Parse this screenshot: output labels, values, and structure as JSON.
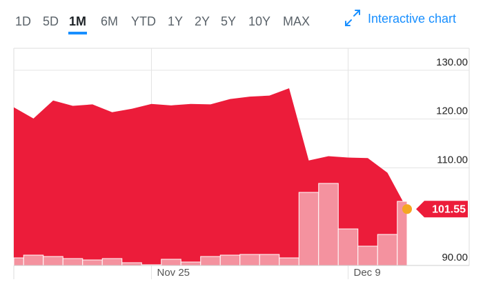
{
  "tabs": [
    "1D",
    "5D",
    "1M",
    "6M",
    "YTD",
    "1Y",
    "2Y",
    "5Y",
    "10Y",
    "MAX"
  ],
  "active_tab": "1M",
  "link": "Interactive chart",
  "chart_data": {
    "type": "area",
    "categories": [
      null,
      null,
      null,
      null,
      null,
      null,
      null,
      "Nov 25",
      null,
      null,
      null,
      null,
      null,
      null,
      null,
      null,
      null,
      "Dec 9",
      null,
      null,
      null
    ],
    "values": [
      122.4,
      120.1,
      123.8,
      122.7,
      123.0,
      121.4,
      122.1,
      123.1,
      122.8,
      123.1,
      123.0,
      124.1,
      124.6,
      124.8,
      126.3,
      111.5,
      112.4,
      112.1,
      112.0,
      109.0,
      101.55
    ],
    "volume": [
      11,
      15,
      13,
      10,
      8,
      10,
      4,
      1,
      9,
      5,
      13,
      15,
      16,
      16,
      11,
      106,
      119,
      53,
      28,
      45,
      93
    ],
    "color": "#ec1c3a",
    "volume_color": "#f4929f",
    "marker_color": "#f5a623",
    "ylim": [
      90,
      134.5
    ],
    "yticks": [
      {
        "value": 90,
        "label": "90.00"
      },
      {
        "value": 110,
        "label": "110.00"
      },
      {
        "value": 120,
        "label": "120.00"
      },
      {
        "value": 130,
        "label": "130.00"
      }
    ],
    "grid": true
  }
}
